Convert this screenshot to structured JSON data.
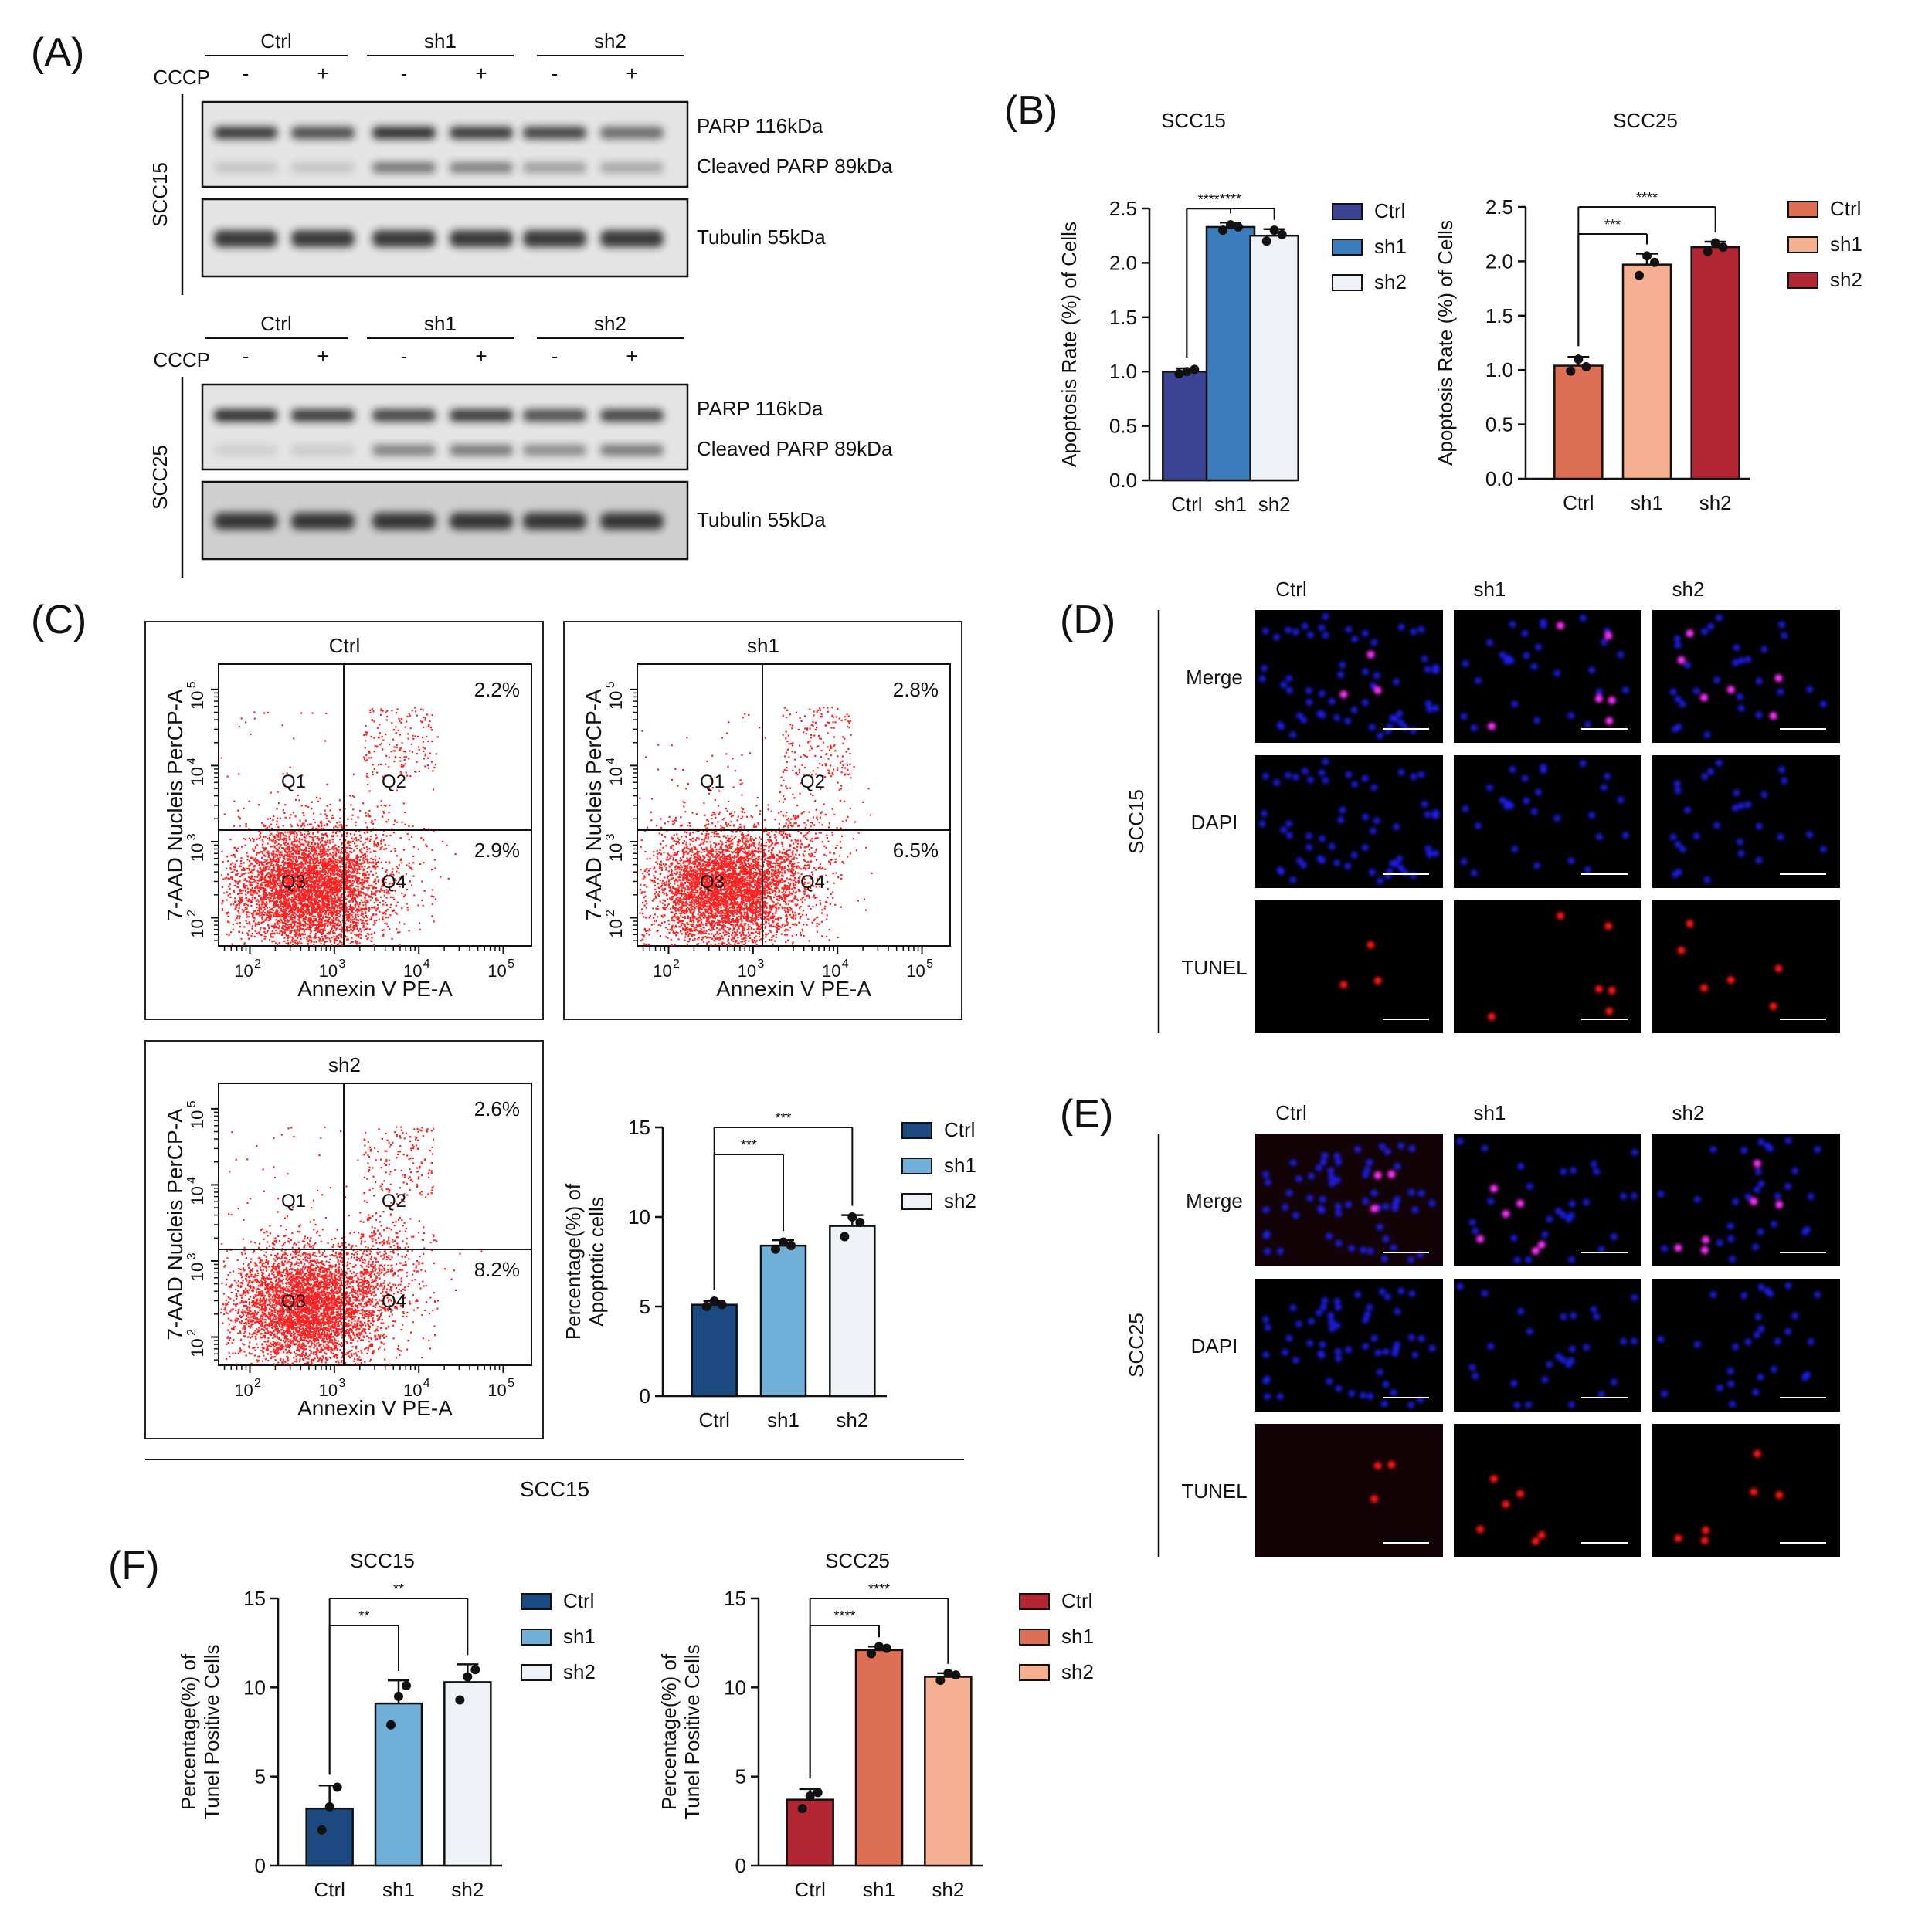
{
  "panel_labels": {
    "A": "(A)",
    "B": "(B)",
    "C": "(C)",
    "D": "(D)",
    "E": "(E)",
    "F": "(F)"
  },
  "blot": {
    "groups": [
      "Ctrl",
      "sh1",
      "sh2"
    ],
    "treatment_label": "CCCP",
    "signs": [
      "-",
      "+",
      "-",
      "+",
      "-",
      "+"
    ],
    "cells": [
      "SCC15",
      "SCC25"
    ],
    "bands": {
      "parp": "PARP 116kDa",
      "cleaved": "Cleaved PARP 89kDa",
      "tubulin": "Tubulin 55kDa"
    },
    "colors": {
      "bg": "#e4e4e4",
      "bg2": "#cfcfcf",
      "band": "#1e1e1e"
    }
  },
  "flow": {
    "panels": [
      {
        "title": "Ctrl",
        "q2": "2.2%",
        "q4": "2.9%"
      },
      {
        "title": "sh1",
        "q2": "2.8%",
        "q4": "6.5%"
      },
      {
        "title": "sh2",
        "q2": "2.6%",
        "q4": "8.2%"
      }
    ],
    "quadrants": [
      "Q1",
      "Q2",
      "Q3",
      "Q4"
    ],
    "xlabel": "Annexin V PE-A",
    "ylabel": "7-AAD Nucleis PerCP-A",
    "ticks": [
      "2",
      "3",
      "4",
      "5"
    ],
    "tick_base": "10",
    "footer": "SCC15",
    "dot_color": "#ff2020"
  },
  "microscopy": {
    "columns": [
      "Ctrl",
      "sh1",
      "sh2"
    ],
    "rows": [
      "Merge",
      "DAPI",
      "TUNEL"
    ],
    "cells": [
      "SCC15",
      "SCC25"
    ]
  },
  "chart_data": [
    {
      "id": "B1",
      "type": "bar",
      "title": "SCC15",
      "categories": [
        "Ctrl",
        "sh1",
        "sh2"
      ],
      "values": [
        1.0,
        2.33,
        2.25
      ],
      "errors": [
        0.03,
        0.04,
        0.06
      ],
      "points": [
        [
          0.98,
          1.0,
          1.02
        ],
        [
          2.3,
          2.35,
          2.33
        ],
        [
          2.2,
          2.3,
          2.26
        ]
      ],
      "ylabel": "Apoptosis Rate (%) of Cells",
      "ylim": [
        0,
        2.5
      ],
      "yticks": [
        "0.0",
        "0.5",
        "1.0",
        "1.5",
        "2.0",
        "2.5"
      ],
      "legend": [
        "Ctrl",
        "sh1",
        "sh2"
      ],
      "colors": [
        "#3b4394",
        "#3c7cbc",
        "#eef1f5"
      ],
      "brackets": [
        {
          "to": 1,
          "label": "****"
        },
        {
          "to": 2,
          "label": "****"
        }
      ]
    },
    {
      "id": "B2",
      "type": "bar",
      "title": "SCC25",
      "categories": [
        "Ctrl",
        "sh1",
        "sh2"
      ],
      "values": [
        1.04,
        1.97,
        2.13
      ],
      "errors": [
        0.08,
        0.1,
        0.05
      ],
      "points": [
        [
          0.99,
          1.1,
          1.03
        ],
        [
          1.87,
          2.05,
          1.99
        ],
        [
          2.09,
          2.17,
          2.13
        ]
      ],
      "ylabel": "Apoptosis Rate (%) of Cells",
      "ylim": [
        0,
        2.5
      ],
      "yticks": [
        "0.0",
        "0.5",
        "1.0",
        "1.5",
        "2.0",
        "2.5"
      ],
      "legend": [
        "Ctrl",
        "sh1",
        "sh2"
      ],
      "colors": [
        "#dd6f54",
        "#f5b092",
        "#b22633"
      ],
      "brackets": [
        {
          "to": 1,
          "label": "***"
        },
        {
          "to": 2,
          "label": "****"
        }
      ]
    },
    {
      "id": "C",
      "type": "bar",
      "title": "",
      "categories": [
        "Ctrl",
        "sh1",
        "sh2"
      ],
      "values": [
        5.1,
        8.4,
        9.5
      ],
      "errors": [
        0.2,
        0.3,
        0.6
      ],
      "points": [
        [
          5.0,
          5.3,
          5.1
        ],
        [
          8.2,
          8.6,
          8.4
        ],
        [
          8.9,
          10.0,
          9.7
        ]
      ],
      "ylabel": "Percentage(%) of Apoptotic cells",
      "ylim": [
        0,
        15
      ],
      "yticks": [
        "0",
        "5",
        "10",
        "15"
      ],
      "legend": [
        "Ctrl",
        "sh1",
        "sh2"
      ],
      "colors": [
        "#1c4a80",
        "#71b0d8",
        "#eef1f5"
      ],
      "brackets": [
        {
          "to": 1,
          "label": "***"
        },
        {
          "to": 2,
          "label": "***"
        }
      ]
    },
    {
      "id": "F1",
      "type": "bar",
      "title": "SCC15",
      "categories": [
        "Ctrl",
        "sh1",
        "sh2"
      ],
      "values": [
        3.2,
        9.1,
        10.3
      ],
      "errors": [
        1.3,
        1.3,
        1.0
      ],
      "points": [
        [
          2.0,
          3.3,
          4.4
        ],
        [
          7.9,
          9.5,
          10.1
        ],
        [
          9.3,
          10.6,
          11.0
        ]
      ],
      "ylabel": "Percentage(%) of Tunel Positive Cells",
      "ylim": [
        0,
        15
      ],
      "yticks": [
        "0",
        "5",
        "10",
        "15"
      ],
      "legend": [
        "Ctrl",
        "sh1",
        "sh2"
      ],
      "colors": [
        "#1c4a80",
        "#71b0d8",
        "#eef1f5"
      ],
      "brackets": [
        {
          "to": 1,
          "label": "**"
        },
        {
          "to": 2,
          "label": "**"
        }
      ]
    },
    {
      "id": "F2",
      "type": "bar",
      "title": "SCC25",
      "categories": [
        "Ctrl",
        "sh1",
        "sh2"
      ],
      "values": [
        3.7,
        12.1,
        10.6
      ],
      "errors": [
        0.6,
        0.2,
        0.2
      ],
      "points": [
        [
          3.2,
          3.9,
          4.1
        ],
        [
          11.9,
          12.3,
          12.2
        ],
        [
          10.4,
          10.8,
          10.7
        ]
      ],
      "ylabel": "Percentage(%) of Tunel Positive Cells",
      "ylim": [
        0,
        15
      ],
      "yticks": [
        "0",
        "5",
        "10",
        "15"
      ],
      "legend": [
        "Ctrl",
        "sh1",
        "sh2"
      ],
      "colors": [
        "#b22633",
        "#dd6f54",
        "#f5b092"
      ],
      "brackets": [
        {
          "to": 1,
          "label": "****"
        },
        {
          "to": 2,
          "label": "****"
        }
      ]
    }
  ]
}
